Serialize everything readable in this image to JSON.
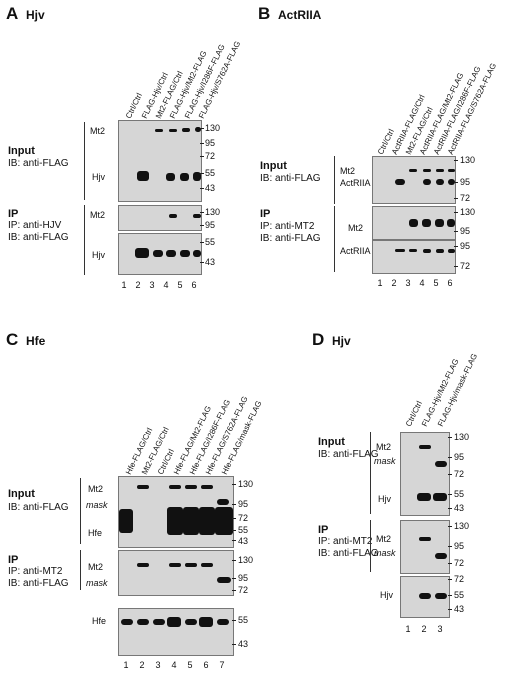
{
  "panelA": {
    "letter": "A",
    "name": "Hjv",
    "lanes": [
      "Ctrl/Ctrl",
      "FLAG-Hjv/Ctrl",
      "Mt2-FLAG/Ctrl",
      "FLAG-Hjv/Mt2-FLAG",
      "FLAG-Hjv/I286F-FLAG",
      "FLAG-Hjv/S762A-FLAG"
    ],
    "input_title": "Input",
    "input_ib": "IB: anti-FLAG",
    "ip_title": "IP",
    "ip_ip": "IP: anti-HJV",
    "ip_ib": "IB: anti-FLAG",
    "bands": [
      "Mt2",
      "Hjv",
      "Mt2",
      "Hjv"
    ],
    "mw_input": [
      "130",
      "95",
      "72",
      "55",
      "43"
    ],
    "mw_ip1": [
      "130",
      "95"
    ],
    "mw_ip2": [
      "55",
      "43"
    ],
    "nums": [
      "1",
      "2",
      "3",
      "4",
      "5",
      "6"
    ]
  },
  "panelB": {
    "letter": "B",
    "name": "ActRIIA",
    "lanes": [
      "Ctrl/Ctrl",
      "ActRIIA-FLAG/Ctrl",
      "Mt2-FLAG/Ctrl",
      "ActRIIA-FLAG/Mt2-FLAG",
      "ActRIIA-FLAG/I286F-FLAG",
      "ActRIIA-FLAG/S762A-FLAG"
    ],
    "input_title": "Input",
    "input_ib": "IB: anti-FLAG",
    "ip_title": "IP",
    "ip_ip": "IP: anti-MT2",
    "ip_ib": "IB: anti-FLAG",
    "bands": [
      "Mt2",
      "ActRIIA",
      "Mt2",
      "ActRIIA"
    ],
    "mw_input": [
      "130",
      "95",
      "72"
    ],
    "mw_ip1": [
      "130",
      "95"
    ],
    "mw_ip2": [
      "95",
      "72"
    ],
    "nums": [
      "1",
      "2",
      "3",
      "4",
      "5",
      "6"
    ]
  },
  "panelC": {
    "letter": "C",
    "name": "Hfe",
    "lanes": [
      "Hfe-FLAG/Ctrl",
      "Mt2-FLAG/Ctrl",
      "Ctrl/Ctrl",
      "Hfe-FLAG/Mt2-FLAG",
      "Hfe-FLAG/I286F-FLAG",
      "Hfe-FLAG/S762A-FLAG",
      "Hfe-FLAG/mask-FLAG"
    ],
    "input_title": "Input",
    "input_ib": "IB: anti-FLAG",
    "ip_title": "IP",
    "ip_ip": "IP: anti-MT2",
    "ip_ib": "IB: anti-FLAG",
    "bands": [
      "Mt2",
      "mask",
      "Hfe",
      "Mt2",
      "mask",
      "Hfe"
    ],
    "mw_input": [
      "130",
      "95",
      "72",
      "55",
      "43"
    ],
    "mw_ip1": [
      "130",
      "95",
      "72"
    ],
    "mw_ip2": [
      "55",
      "43"
    ],
    "nums": [
      "1",
      "2",
      "3",
      "4",
      "5",
      "6",
      "7"
    ]
  },
  "panelD": {
    "letter": "D",
    "name": "Hjv",
    "lanes": [
      "Ctrl/Ctrl",
      "FLAG-Hjv/Mt2-FLAG",
      "FLAG-Hjv/mask-FLAG"
    ],
    "input_title": "Input",
    "input_ib": "IB: anti-FLAG",
    "ip_title": "IP",
    "ip_ip": "IP: anti-MT2",
    "ip_ib": "IB: anti-FLAG",
    "bands": [
      "Mt2",
      "mask",
      "Hjv",
      "Mt2",
      "mask",
      "Hjv"
    ],
    "mw_input": [
      "130",
      "95",
      "72",
      "55",
      "43"
    ],
    "mw_ip1": [
      "130",
      "95",
      "72"
    ],
    "mw_ip2": [
      "72",
      "55",
      "43"
    ],
    "nums": [
      "1",
      "2",
      "3"
    ]
  }
}
